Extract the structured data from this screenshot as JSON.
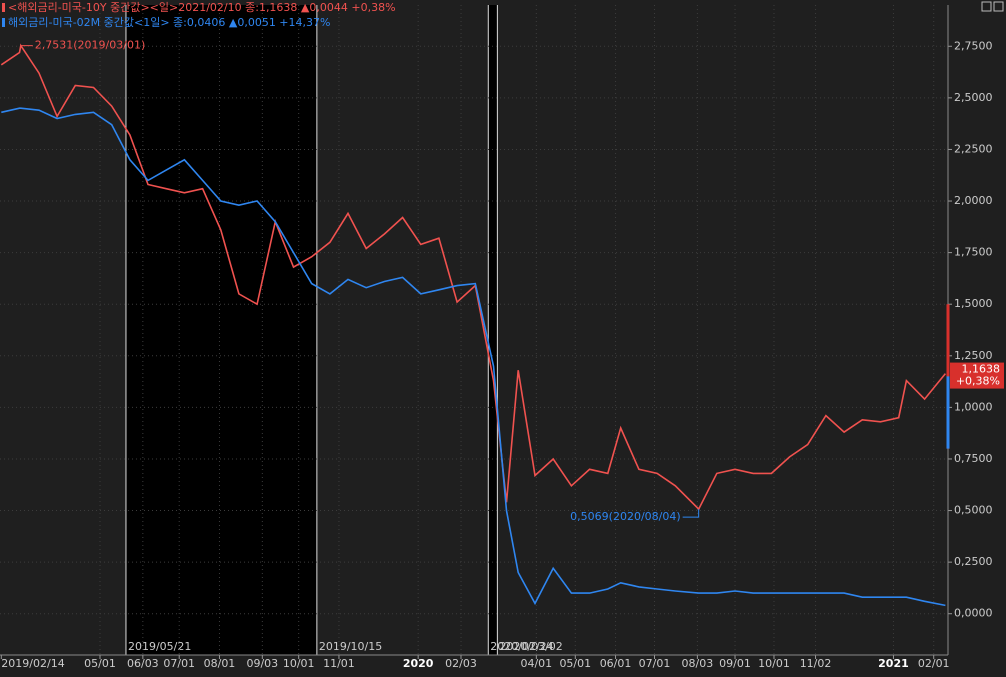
{
  "chart_data": {
    "type": "line",
    "legend": [
      {
        "text": "<해외금리-미국-10Y 중간값><일>2021/02/10 종:1,1638 ▲0,0044 +0,38%",
        "color": "#f0524f"
      },
      {
        "text": "해외금리-미국-02M 중간값<1일> 종:0,0406 ▲0,0051 +14,37%",
        "color": "#2f86f0"
      }
    ],
    "x": [
      "2019/02/14",
      "2019/02/28",
      "2019/03/01",
      "2019/03/15",
      "2019/03/29",
      "2019/04/12",
      "2019/04/26",
      "2019/05/10",
      "2019/05/24",
      "2019/06/07",
      "2019/06/21",
      "2019/07/05",
      "2019/07/19",
      "2019/08/02",
      "2019/08/16",
      "2019/08/30",
      "2019/09/13",
      "2019/09/27",
      "2019/10/11",
      "2019/10/25",
      "2019/11/08",
      "2019/11/22",
      "2019/12/06",
      "2019/12/20",
      "2020/01/03",
      "2020/01/17",
      "2020/01/31",
      "2020/02/14",
      "2020/02/28",
      "2020/03/09",
      "2020/03/18",
      "2020/03/31",
      "2020/04/14",
      "2020/04/28",
      "2020/05/12",
      "2020/05/26",
      "2020/06/05",
      "2020/06/19",
      "2020/07/03",
      "2020/07/17",
      "2020/08/04",
      "2020/08/18",
      "2020/09/01",
      "2020/09/15",
      "2020/09/29",
      "2020/10/13",
      "2020/10/27",
      "2020/11/10",
      "2020/11/24",
      "2020/12/08",
      "2020/12/22",
      "2021/01/05",
      "2021/01/11",
      "2021/01/25",
      "2021/02/10"
    ],
    "series": [
      {
        "name": "해외금리-미국-10Y",
        "color": "#f0524f",
        "values": [
          2.66,
          2.72,
          2.7531,
          2.62,
          2.41,
          2.56,
          2.55,
          2.46,
          2.32,
          2.08,
          2.06,
          2.04,
          2.06,
          1.86,
          1.55,
          1.5,
          1.9,
          1.68,
          1.73,
          1.8,
          1.94,
          1.77,
          1.84,
          1.92,
          1.79,
          1.82,
          1.51,
          1.59,
          1.13,
          0.54,
          1.18,
          0.67,
          0.75,
          0.62,
          0.7,
          0.68,
          0.9,
          0.7,
          0.68,
          0.62,
          0.5069,
          0.68,
          0.7,
          0.68,
          0.68,
          0.76,
          0.82,
          0.96,
          0.88,
          0.94,
          0.93,
          0.95,
          1.13,
          1.04,
          1.1638
        ]
      },
      {
        "name": "해외금리-미국-02M",
        "color": "#2f86f0",
        "values": [
          2.43,
          2.45,
          2.45,
          2.44,
          2.4,
          2.42,
          2.43,
          2.37,
          2.2,
          2.1,
          2.15,
          2.2,
          2.1,
          2.0,
          1.98,
          2.0,
          1.9,
          1.75,
          1.6,
          1.55,
          1.62,
          1.58,
          1.61,
          1.63,
          1.55,
          1.57,
          1.59,
          1.6,
          1.2,
          0.5,
          0.2,
          0.05,
          0.22,
          0.1,
          0.1,
          0.12,
          0.15,
          0.13,
          0.12,
          0.11,
          0.1,
          0.1,
          0.11,
          0.1,
          0.1,
          0.1,
          0.1,
          0.1,
          0.1,
          0.08,
          0.08,
          0.08,
          0.08,
          0.06,
          0.0406
        ]
      }
    ],
    "annotations": [
      {
        "text": "2,7531(2019/03/01)"
      },
      {
        "text": "0,5069(2020/08/04)"
      }
    ],
    "last_tag": [
      "1,1638",
      "+0,38%"
    ],
    "markers": [
      "2019/05/21",
      "2019/10/15",
      "2020/02/24",
      "2020/03/02"
    ],
    "xlim": [
      "2019/02/13",
      "2021/02/12"
    ],
    "xticks": [
      {
        "value": "2019/02/14",
        "label": "2019/02/14"
      },
      {
        "value": "2019/05/01",
        "label": "05/01"
      },
      {
        "value": "2019/06/03",
        "label": "06/03"
      },
      {
        "value": "2019/07/01",
        "label": "07/01"
      },
      {
        "value": "2019/08/01",
        "label": "08/01"
      },
      {
        "value": "2019/09/03",
        "label": "09/03"
      },
      {
        "value": "2019/10/01",
        "label": "10/01"
      },
      {
        "value": "2019/11/01",
        "label": "11/01"
      },
      {
        "value": "2020/01/01",
        "label": "2020"
      },
      {
        "value": "2020/02/03",
        "label": "02/03"
      },
      {
        "value": "2020/04/01",
        "label": "04/01"
      },
      {
        "value": "2020/05/01",
        "label": "05/01"
      },
      {
        "value": "2020/06/01",
        "label": "06/01"
      },
      {
        "value": "2020/07/01",
        "label": "07/01"
      },
      {
        "value": "2020/08/03",
        "label": "08/03"
      },
      {
        "value": "2020/09/01",
        "label": "09/01"
      },
      {
        "value": "2020/10/01",
        "label": "10/01"
      },
      {
        "value": "2020/11/02",
        "label": "11/02"
      },
      {
        "value": "2021/01/01",
        "label": "2021"
      },
      {
        "value": "2021/02/01",
        "label": "02/01"
      }
    ],
    "ylim": [
      -0.2,
      2.95
    ],
    "yticks": [
      {
        "value": 0,
        "label": "0,0000"
      },
      {
        "value": 0.25,
        "label": "0,2500"
      },
      {
        "value": 0.5,
        "label": "0,5000"
      },
      {
        "value": 0.75,
        "label": "0,7500"
      },
      {
        "value": 1,
        "label": "1,0000"
      },
      {
        "value": 1.25,
        "label": "1,2500"
      },
      {
        "value": 1.5,
        "label": "1,5000"
      },
      {
        "value": 1.75,
        "label": "1,7500"
      },
      {
        "value": 2,
        "label": "2,0000"
      },
      {
        "value": 2.25,
        "label": "2,2500"
      },
      {
        "value": 2.5,
        "label": "2,5000"
      },
      {
        "value": 2.75,
        "label": "2,7500"
      }
    ],
    "grid": true
  }
}
